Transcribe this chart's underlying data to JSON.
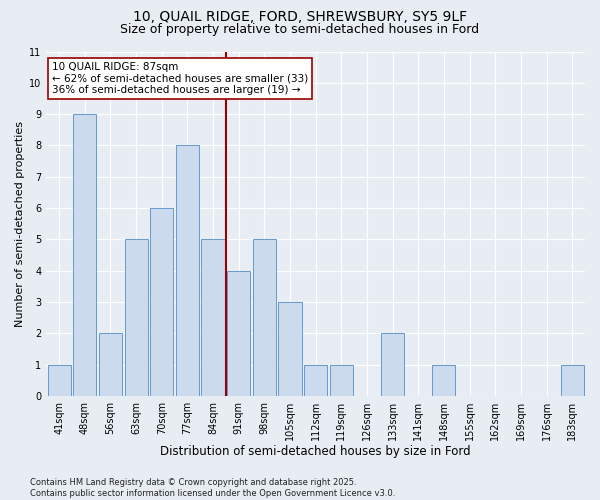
{
  "title1": "10, QUAIL RIDGE, FORD, SHREWSBURY, SY5 9LF",
  "title2": "Size of property relative to semi-detached houses in Ford",
  "xlabel": "Distribution of semi-detached houses by size in Ford",
  "ylabel": "Number of semi-detached properties",
  "categories": [
    "41sqm",
    "48sqm",
    "56sqm",
    "63sqm",
    "70sqm",
    "77sqm",
    "84sqm",
    "91sqm",
    "98sqm",
    "105sqm",
    "112sqm",
    "119sqm",
    "126sqm",
    "133sqm",
    "141sqm",
    "148sqm",
    "155sqm",
    "162sqm",
    "169sqm",
    "176sqm",
    "183sqm"
  ],
  "values": [
    1,
    9,
    2,
    5,
    6,
    8,
    5,
    4,
    5,
    3,
    1,
    1,
    0,
    2,
    0,
    1,
    0,
    0,
    0,
    0,
    1
  ],
  "bar_color": "#ccdaee",
  "bar_edge_color": "#6699cc",
  "vline_color": "#990000",
  "vline_x_index": 6.5,
  "annotation_text": "10 QUAIL RIDGE: 87sqm\n← 62% of semi-detached houses are smaller (33)\n36% of semi-detached houses are larger (19) →",
  "annotation_box_facecolor": "#ffffff",
  "annotation_box_edgecolor": "#990000",
  "ylim": [
    0,
    11
  ],
  "yticks": [
    0,
    1,
    2,
    3,
    4,
    5,
    6,
    7,
    8,
    9,
    10,
    11
  ],
  "background_color": "#e8edf4",
  "grid_color": "#ffffff",
  "footer": "Contains HM Land Registry data © Crown copyright and database right 2025.\nContains public sector information licensed under the Open Government Licence v3.0.",
  "title1_fontsize": 10,
  "title2_fontsize": 9,
  "xlabel_fontsize": 8.5,
  "ylabel_fontsize": 8,
  "tick_fontsize": 7,
  "annotation_fontsize": 7.5,
  "footer_fontsize": 6
}
